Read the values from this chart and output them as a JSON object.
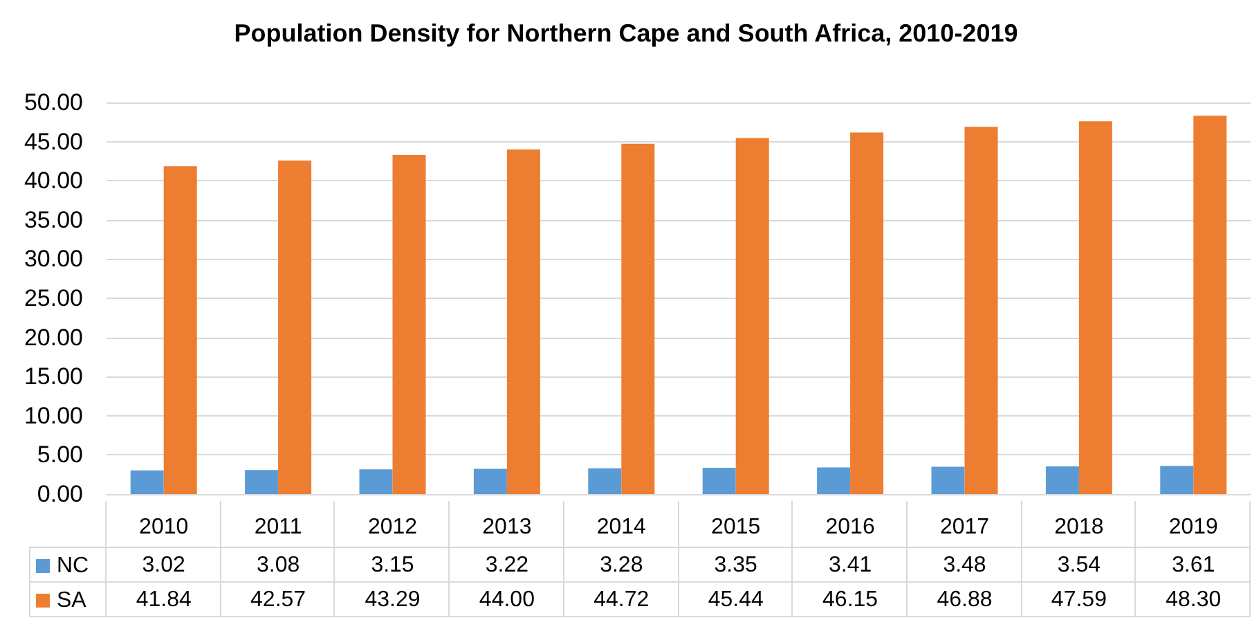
{
  "chart_data": {
    "type": "bar",
    "title": "Population Density for Northern Cape and South Africa, 2010-2019",
    "categories": [
      "2010",
      "2011",
      "2012",
      "2013",
      "2014",
      "2015",
      "2016",
      "2017",
      "2018",
      "2019"
    ],
    "series": [
      {
        "name": "NC",
        "color": "#5b9bd5",
        "values": [
          3.02,
          3.08,
          3.15,
          3.22,
          3.28,
          3.35,
          3.41,
          3.48,
          3.54,
          3.61
        ],
        "value_labels": [
          "3.02",
          "3.08",
          "3.15",
          "3.22",
          "3.28",
          "3.35",
          "3.41",
          "3.48",
          "3.54",
          "3.61"
        ]
      },
      {
        "name": "SA",
        "color": "#ed7d31",
        "values": [
          41.84,
          42.57,
          43.29,
          44.0,
          44.72,
          45.44,
          46.15,
          46.88,
          47.59,
          48.3
        ],
        "value_labels": [
          "41.84",
          "42.57",
          "43.29",
          "44.00",
          "44.72",
          "45.44",
          "46.15",
          "46.88",
          "47.59",
          "48.30"
        ]
      }
    ],
    "ylim": [
      0,
      50
    ],
    "yticks": [
      {
        "value": 0,
        "label": "0.00"
      },
      {
        "value": 5,
        "label": "5.00"
      },
      {
        "value": 10,
        "label": "10.00"
      },
      {
        "value": 15,
        "label": "15.00"
      },
      {
        "value": 20,
        "label": "20.00"
      },
      {
        "value": 25,
        "label": "25.00"
      },
      {
        "value": 30,
        "label": "30.00"
      },
      {
        "value": 35,
        "label": "35.00"
      },
      {
        "value": 40,
        "label": "40.00"
      },
      {
        "value": 45,
        "label": "45.00"
      },
      {
        "value": 50,
        "label": "50.00"
      }
    ],
    "grid": "y",
    "legend": "bottom left"
  }
}
